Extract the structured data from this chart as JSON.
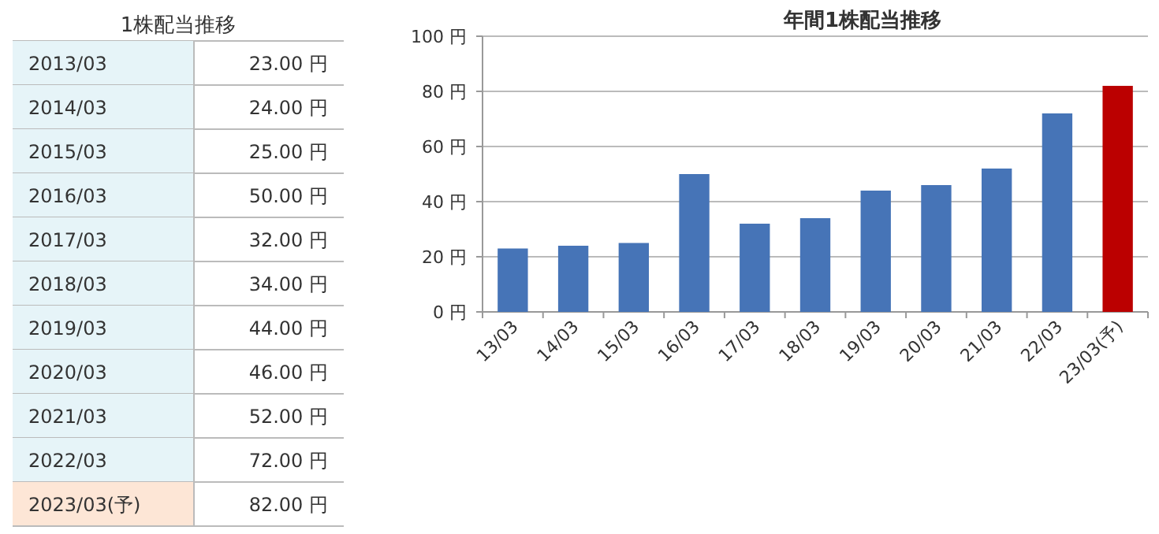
{
  "chart_data": [
    {
      "type": "other",
      "title": "1株配当推移",
      "categories": [
        "2013/03",
        "2014/03",
        "2015/03",
        "2016/03",
        "2017/03",
        "2018/03",
        "2019/03",
        "2020/03",
        "2021/03",
        "2022/03",
        "2023/03(予)"
      ],
      "value_labels": [
        "23.00 円",
        "24.00 円",
        "25.00 円",
        "50.00 円",
        "32.00 円",
        "34.00 円",
        "44.00 円",
        "46.00 円",
        "52.00 円",
        "72.00 円",
        "82.00 円"
      ],
      "colors": [
        "#e6f4f8",
        "#e6f4f8",
        "#e6f4f8",
        "#e6f4f8",
        "#e6f4f8",
        "#e6f4f8",
        "#e6f4f8",
        "#e6f4f8",
        "#e6f4f8",
        "#e6f4f8",
        "#fde6d6"
      ]
    },
    {
      "type": "bar",
      "title": "年間1株配当推移",
      "categories": [
        "13/03",
        "14/03",
        "15/03",
        "16/03",
        "17/03",
        "18/03",
        "19/03",
        "20/03",
        "21/03",
        "22/03",
        "23/03(予)"
      ],
      "values": [
        23,
        24,
        25,
        50,
        32,
        34,
        44,
        46,
        52,
        72,
        82
      ],
      "colors": [
        "#4674b7",
        "#4674b7",
        "#4674b7",
        "#4674b7",
        "#4674b7",
        "#4674b7",
        "#4674b7",
        "#4674b7",
        "#4674b7",
        "#4674b7",
        "#bb0000"
      ],
      "ylim": [
        0,
        100
      ],
      "yticks": [
        {
          "value": 0,
          "label": "0 円"
        },
        {
          "value": 20,
          "label": "20 円"
        },
        {
          "value": 40,
          "label": "40 円"
        },
        {
          "value": 60,
          "label": "60 円"
        },
        {
          "value": 80,
          "label": "80 円"
        },
        {
          "value": 100,
          "label": "100 円"
        }
      ],
      "grid": "y"
    }
  ]
}
